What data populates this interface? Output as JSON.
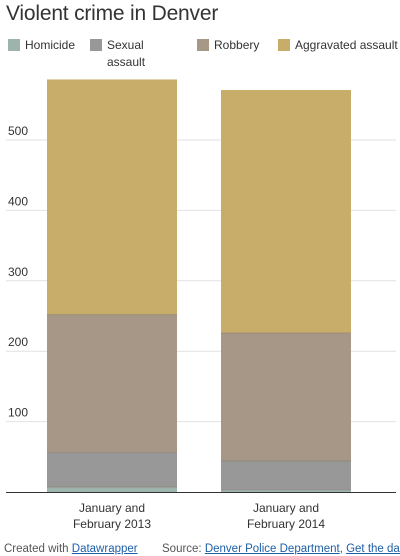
{
  "header": {
    "title": "Violent crime in Denver"
  },
  "chart_data": {
    "type": "bar",
    "stacked": true,
    "categories": [
      "January and February 2013",
      "January and February 2014"
    ],
    "series": [
      {
        "name": "Homicide",
        "color": "#9fb3ad",
        "values": [
          7,
          3
        ]
      },
      {
        "name": "Sexual assault",
        "color": "#989898",
        "values": [
          49,
          41
        ]
      },
      {
        "name": "Robbery",
        "color": "#a69787",
        "values": [
          196,
          182
        ]
      },
      {
        "name": "Aggravated assault",
        "color": "#c7ad69",
        "values": [
          334,
          345
        ]
      }
    ],
    "yticks": [
      100,
      200,
      300,
      400,
      500
    ],
    "ylim": [
      0,
      590
    ],
    "grid": true,
    "legend_position": "top"
  },
  "category_lines": [
    [
      "January and",
      "February 2013"
    ],
    [
      "January and",
      "February 2014"
    ]
  ],
  "legend_lines": {
    "Sexual assault": [
      "Sexual",
      "assault"
    ]
  },
  "footer": {
    "created_prefix": "Created with ",
    "created_link": "Datawrapper",
    "source_prefix": "Source: ",
    "source_link": "Denver Police Department",
    "separator": ", ",
    "data_link": "Get the data"
  }
}
